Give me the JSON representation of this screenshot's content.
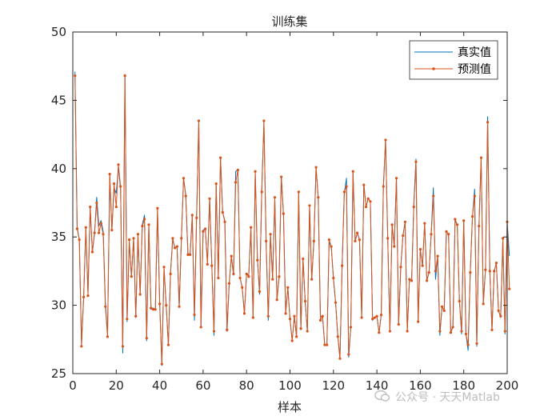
{
  "chart_data": {
    "type": "line",
    "title": "训练集",
    "xlabel": "样本",
    "ylabel": "",
    "xlim": [
      0,
      200
    ],
    "ylim": [
      25,
      50
    ],
    "xticks": [
      0,
      20,
      40,
      60,
      80,
      100,
      120,
      140,
      160,
      180,
      200
    ],
    "yticks": [
      25,
      30,
      35,
      40,
      45,
      50
    ],
    "grid": false,
    "legend_position": "top-right",
    "series": [
      {
        "name": "真实值",
        "color": "#0072BD",
        "marker": "none",
        "values": [
          47.1,
          35.7,
          34.8,
          27.2,
          30.6,
          35.6,
          30.9,
          37.2,
          33.9,
          35.2,
          37.9,
          35.8,
          36.2,
          35.4,
          30.2,
          27.8,
          39.5,
          35.5,
          38.6,
          38.2,
          40.1,
          38.5,
          26.5,
          46.9,
          28.8,
          34.6,
          32.1,
          34.9,
          29.1,
          35.1,
          30.8,
          35.9,
          36.6,
          27.4,
          35.9,
          29.7,
          29.8,
          29.7,
          37.0,
          30.2,
          25.6,
          32.7,
          30.0,
          27.1,
          32.5,
          34.8,
          34.2,
          34.3,
          29.9,
          34.9,
          39.3,
          38.1,
          33.8,
          33.7,
          36.5,
          28.9,
          36.5,
          43.5,
          28.4,
          35.5,
          35.6,
          33.1,
          37.8,
          33.0,
          27.8,
          38.9,
          32.0,
          40.8,
          36.8,
          36.2,
          28.1,
          31.5,
          33.6,
          32.2,
          39.8,
          39.9,
          32.0,
          31.3,
          29.4,
          32.3,
          32.2,
          35.6,
          29.1,
          39.8,
          33.4,
          30.8,
          38.5,
          43.4,
          34.6,
          28.9,
          35.2,
          31.9,
          37.8,
          30.4,
          32.1,
          39.4,
          36.6,
          29.4,
          31.3,
          29.0,
          27.4,
          29.2,
          27.7,
          38.3,
          28.2,
          33.4,
          30.2,
          28.1,
          37.2,
          31.9,
          34.7,
          40.1,
          37.8,
          29.2,
          29.1,
          27.1,
          27.1,
          34.6,
          34.3,
          31.9,
          30.2,
          27.8,
          26.1,
          32.9,
          38.2,
          39.3,
          26.2,
          28.4,
          39.8,
          34.7,
          35.3,
          34.8,
          29.1,
          38.9,
          37.2,
          37.8,
          37.6,
          28.9,
          29.1,
          29.2,
          28.0,
          29.3,
          38.7,
          42.1,
          34.8,
          28.1,
          35.9,
          34.3,
          39.3,
          28.6,
          32.8,
          35.1,
          36.1,
          28.1,
          31.9,
          31.8,
          37.4,
          40.7,
          28.8,
          34.1,
          32.9,
          36.0,
          31.8,
          32.4,
          35.2,
          38.6,
          31.9,
          33.6,
          27.8,
          29.9,
          29.6,
          35.4,
          35.2,
          28.1,
          28.4,
          36.2,
          35.9,
          30.4,
          27.9,
          36.2,
          27.9,
          26.7,
          32.4,
          36.5,
          38.5,
          27.0,
          35.8,
          40.8,
          30.1,
          32.6,
          43.8,
          32.5,
          28.2,
          32.5,
          33.1,
          29.6,
          29.1,
          34.8,
          27.9,
          36.1,
          33.6
        ]
      },
      {
        "name": "预测值",
        "color": "#D95319",
        "marker": "dot",
        "values": [
          46.8,
          35.6,
          34.8,
          27.0,
          30.6,
          35.7,
          30.7,
          37.2,
          33.9,
          35.3,
          37.5,
          35.3,
          36.0,
          35.2,
          29.9,
          27.7,
          39.6,
          35.5,
          38.9,
          37.2,
          40.3,
          38.7,
          27.0,
          46.8,
          29.0,
          34.8,
          32.1,
          34.9,
          29.2,
          35.2,
          30.8,
          35.8,
          36.3,
          27.6,
          35.9,
          29.8,
          29.7,
          29.7,
          37.1,
          30.1,
          25.7,
          32.8,
          30.0,
          27.1,
          32.3,
          34.9,
          34.2,
          34.3,
          29.9,
          34.9,
          39.3,
          38.0,
          33.7,
          33.7,
          36.6,
          29.3,
          36.4,
          43.5,
          28.4,
          35.4,
          35.6,
          33.0,
          37.8,
          32.9,
          28.1,
          38.9,
          32.0,
          40.8,
          36.8,
          36.1,
          28.2,
          31.6,
          33.6,
          32.3,
          39.0,
          39.9,
          32.0,
          31.3,
          29.4,
          32.3,
          32.1,
          35.7,
          29.1,
          39.8,
          33.3,
          31.0,
          38.3,
          43.5,
          34.7,
          29.2,
          35.2,
          31.9,
          37.9,
          30.4,
          32.1,
          39.4,
          36.7,
          29.4,
          31.3,
          29.0,
          27.4,
          29.2,
          27.7,
          38.3,
          28.3,
          33.4,
          30.3,
          28.1,
          37.3,
          31.9,
          34.7,
          40.1,
          37.9,
          28.9,
          29.2,
          27.1,
          27.1,
          34.8,
          34.3,
          32.0,
          30.2,
          27.7,
          26.1,
          32.9,
          38.3,
          38.7,
          26.4,
          28.4,
          39.8,
          34.7,
          35.3,
          34.8,
          29.1,
          38.8,
          37.2,
          37.8,
          37.6,
          29.0,
          29.1,
          29.2,
          28.0,
          29.3,
          38.7,
          42.1,
          34.9,
          28.1,
          35.9,
          34.3,
          39.3,
          28.6,
          32.8,
          35.1,
          36.1,
          28.1,
          31.9,
          31.8,
          37.2,
          40.5,
          28.8,
          34.1,
          32.9,
          36.0,
          31.8,
          32.4,
          35.2,
          38.0,
          32.5,
          33.6,
          28.1,
          29.9,
          29.6,
          35.4,
          35.2,
          28.0,
          28.4,
          36.3,
          35.9,
          30.3,
          28.1,
          36.2,
          27.9,
          27.1,
          32.4,
          36.5,
          38.0,
          27.2,
          35.8,
          40.8,
          30.1,
          32.6,
          43.4,
          32.5,
          28.2,
          32.5,
          33.1,
          29.6,
          29.2,
          34.9,
          28.1,
          36.1,
          31.2
        ]
      }
    ]
  },
  "watermark": {
    "text": "公众号 · 天天Matlab"
  }
}
